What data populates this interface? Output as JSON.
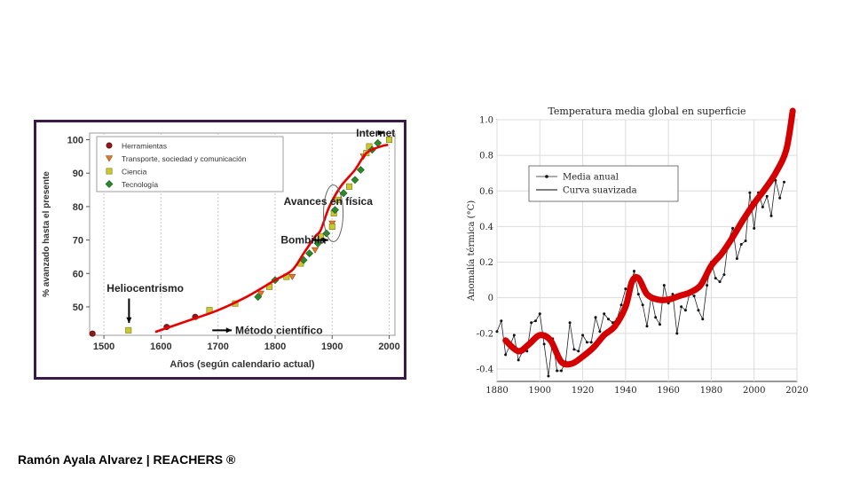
{
  "footer": {
    "credit": "Ramón Ayala Alvarez | REACHERS ®"
  },
  "colors": {
    "frame": "#3b1a4a",
    "herramientas": "#8b1a1a",
    "transporte": "#e07a2a",
    "ciencia": "#c8c832",
    "tecnologia": "#2a8a2a",
    "fit_line": "#e60000",
    "thick_line": "#d40000"
  },
  "chart_data": [
    {
      "type": "scatter",
      "title": "",
      "xlabel": "Años (según calendario actual)",
      "ylabel": "% avanzado hasta el presente",
      "xlim": [
        1475,
        2010
      ],
      "ylim": [
        41.5,
        102
      ],
      "x_ticks": [
        "1500",
        "1600",
        "1700",
        "1800",
        "1900",
        "2000"
      ],
      "y_ticks": [
        "50",
        "60",
        "70",
        "80",
        "90",
        "100"
      ],
      "grid": "vertical",
      "legend": "top-left",
      "legend_entries": [
        {
          "label": "Herramientas",
          "key": "herramientas",
          "marker": "circle"
        },
        {
          "label": "Transporte, sociedad y comunicación",
          "key": "transporte",
          "marker": "triangle"
        },
        {
          "label": "Ciencia",
          "key": "ciencia",
          "marker": "square"
        },
        {
          "label": "Tecnología",
          "key": "tecnologia",
          "marker": "diamond"
        }
      ],
      "series": [
        {
          "name": "Herramientas",
          "key": "herramientas",
          "points": [
            [
              1480,
              42
            ],
            [
              1610,
              44
            ],
            [
              1660,
              47
            ]
          ]
        },
        {
          "name": "Transporte, sociedad y comunicación",
          "key": "transporte",
          "points": [
            [
              1775,
              54
            ],
            [
              1830,
              59
            ],
            [
              1870,
              67
            ],
            [
              1900,
              75
            ],
            [
              1955,
              95
            ]
          ]
        },
        {
          "name": "Ciencia",
          "key": "ciencia",
          "points": [
            [
              1543,
              43
            ],
            [
              1685,
              49
            ],
            [
              1730,
              51
            ],
            [
              1790,
              56
            ],
            [
              1820,
              59
            ],
            [
              1845,
              63
            ],
            [
              1880,
              71
            ],
            [
              1900,
              74
            ],
            [
              1903,
              78
            ],
            [
              1910,
              82
            ],
            [
              1930,
              86
            ],
            [
              1960,
              96
            ],
            [
              1965,
              98
            ],
            [
              2000,
              100
            ]
          ]
        },
        {
          "name": "Tecnología",
          "key": "tecnologia",
          "points": [
            [
              1770,
              53
            ],
            [
              1800,
              58
            ],
            [
              1850,
              64
            ],
            [
              1860,
              66
            ],
            [
              1875,
              69
            ],
            [
              1890,
              72
            ],
            [
              1905,
              79
            ],
            [
              1920,
              84
            ],
            [
              1940,
              88
            ],
            [
              1950,
              91
            ],
            [
              1970,
              97
            ],
            [
              1980,
              99
            ]
          ]
        }
      ],
      "fit_line": [
        [
          1590,
          42.5
        ],
        [
          1650,
          46
        ],
        [
          1700,
          49
        ],
        [
          1750,
          53
        ],
        [
          1800,
          58
        ],
        [
          1830,
          61
        ],
        [
          1850,
          66
        ],
        [
          1870,
          71
        ],
        [
          1880,
          73
        ],
        [
          1895,
          80
        ],
        [
          1915,
          86
        ],
        [
          1940,
          91
        ],
        [
          1960,
          96
        ],
        [
          1985,
          98
        ],
        [
          1998,
          98.5
        ]
      ],
      "annotations": [
        {
          "text": "Internet",
          "x": 1942,
          "y": 101,
          "arrow_to": [
            1990,
            99
          ]
        },
        {
          "text": "Avances en física",
          "x": 1815,
          "y": 80.5,
          "arrow_to": null
        },
        {
          "text": "Bombilla",
          "x": 1810,
          "y": 70,
          "arrow_to": [
            1860,
            70
          ]
        },
        {
          "text": "Heliocentrismo",
          "x": 1505,
          "y": 54.5,
          "arrow_to": [
            1545,
            44.5
          ]
        },
        {
          "text": "Método científico",
          "x": 1700,
          "y": 43,
          "arrow_to": [
            1680,
            44
          ]
        }
      ]
    },
    {
      "type": "line",
      "title": "Temperatura media global en superficie",
      "xlabel": "",
      "ylabel": "Anomalía térmica (°C)",
      "xlim": [
        1880,
        2020
      ],
      "ylim": [
        -0.47,
        1.0
      ],
      "x_ticks": [
        "1880",
        "1900",
        "1920",
        "1940",
        "1960",
        "1980",
        "2000",
        "2020"
      ],
      "y_ticks": [
        "-0.4",
        "-0.2",
        "0",
        "0.2",
        "0.4",
        "0.6",
        "0.8",
        "1.0"
      ],
      "grid": "on",
      "legend": "top-left",
      "series": [
        {
          "name": "Media anual",
          "style": "points",
          "x": [
            1880,
            1882,
            1884,
            1886,
            1888,
            1890,
            1892,
            1894,
            1896,
            1898,
            1900,
            1902,
            1904,
            1906,
            1908,
            1910,
            1912,
            1914,
            1916,
            1918,
            1920,
            1922,
            1924,
            1926,
            1928,
            1930,
            1932,
            1934,
            1936,
            1938,
            1940,
            1942,
            1944,
            1946,
            1948,
            1950,
            1952,
            1954,
            1956,
            1958,
            1960,
            1962,
            1964,
            1966,
            1968,
            1970,
            1972,
            1974,
            1976,
            1978,
            1980,
            1982,
            1984,
            1986,
            1988,
            1990,
            1992,
            1994,
            1996,
            1998,
            2000,
            2002,
            2004,
            2006,
            2008,
            2010,
            2012,
            2014
          ],
          "y": [
            -0.19,
            -0.13,
            -0.32,
            -0.27,
            -0.21,
            -0.35,
            -0.3,
            -0.3,
            -0.14,
            -0.13,
            -0.09,
            -0.26,
            -0.44,
            -0.23,
            -0.41,
            -0.41,
            -0.36,
            -0.14,
            -0.29,
            -0.3,
            -0.21,
            -0.25,
            -0.25,
            -0.11,
            -0.19,
            -0.09,
            -0.12,
            -0.14,
            -0.12,
            -0.04,
            0.05,
            0.04,
            0.15,
            0.02,
            -0.04,
            -0.16,
            0.01,
            -0.11,
            -0.15,
            0.07,
            -0.03,
            0.02,
            -0.2,
            -0.05,
            -0.07,
            0.03,
            0.01,
            -0.07,
            -0.12,
            0.07,
            0.2,
            0.11,
            0.09,
            0.13,
            0.32,
            0.39,
            0.22,
            0.3,
            0.32,
            0.59,
            0.39,
            0.59,
            0.51,
            0.57,
            0.46,
            0.66,
            0.56,
            0.65
          ]
        },
        {
          "name": "Curva suavizada",
          "style": "line",
          "x": [
            1884,
            1890,
            1895,
            1900,
            1905,
            1910,
            1915,
            1920,
            1925,
            1930,
            1935,
            1940,
            1943,
            1946,
            1950,
            1955,
            1960,
            1965,
            1970,
            1975,
            1980,
            1985,
            1990,
            1995,
            2000,
            2005,
            2010,
            2015,
            2018
          ],
          "y": [
            -0.24,
            -0.3,
            -0.26,
            -0.21,
            -0.24,
            -0.36,
            -0.37,
            -0.33,
            -0.28,
            -0.21,
            -0.16,
            -0.05,
            0.09,
            0.11,
            0.02,
            -0.01,
            -0.01,
            0.01,
            0.03,
            0.07,
            0.18,
            0.25,
            0.34,
            0.44,
            0.53,
            0.61,
            0.7,
            0.83,
            1.05
          ]
        }
      ]
    }
  ]
}
